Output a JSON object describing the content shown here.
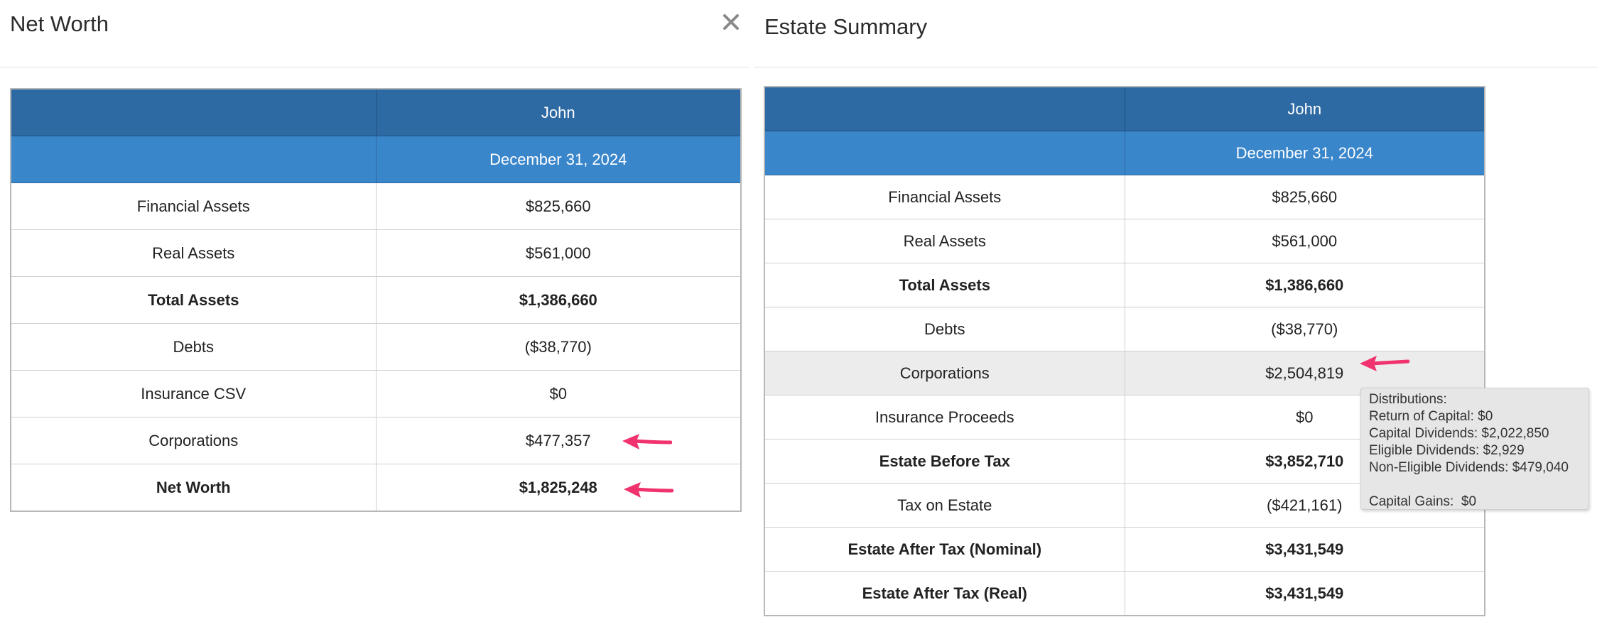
{
  "net_worth": {
    "title": "Net Worth",
    "header": {
      "name": "John",
      "date": "December 31, 2024"
    },
    "rows": [
      {
        "label": "Financial Assets",
        "value": "$825,660",
        "bold": false
      },
      {
        "label": "Real Assets",
        "value": "$561,000",
        "bold": false
      },
      {
        "label": "Total Assets",
        "value": "$1,386,660",
        "bold": true
      },
      {
        "label": "Debts",
        "value": "($38,770)",
        "bold": false
      },
      {
        "label": "Insurance CSV",
        "value": "$0",
        "bold": false
      },
      {
        "label": "Corporations",
        "value": "$477,357",
        "bold": false
      },
      {
        "label": "Net Worth",
        "value": "$1,825,248",
        "bold": true
      }
    ]
  },
  "estate_summary": {
    "title": "Estate Summary",
    "header": {
      "name": "John",
      "date": "December 31, 2024"
    },
    "rows": [
      {
        "label": "Financial Assets",
        "value": "$825,660",
        "bold": false
      },
      {
        "label": "Real Assets",
        "value": "$561,000",
        "bold": false
      },
      {
        "label": "Total Assets",
        "value": "$1,386,660",
        "bold": true
      },
      {
        "label": "Debts",
        "value": "($38,770)",
        "bold": false
      },
      {
        "label": "Corporations",
        "value": "$2,504,819",
        "bold": false
      },
      {
        "label": "Insurance Proceeds",
        "value": "$0",
        "bold": false
      },
      {
        "label": "Estate Before Tax",
        "value": "$3,852,710",
        "bold": true
      },
      {
        "label": "Tax on Estate",
        "value": "($421,161)",
        "bold": false
      },
      {
        "label": "Estate After Tax (Nominal)",
        "value": "$3,431,549",
        "bold": true
      },
      {
        "label": "Estate After Tax (Real)",
        "value": "$3,431,549",
        "bold": true
      }
    ]
  },
  "tooltip": {
    "lines": [
      "Distributions:",
      "Return of Capital: $0",
      "Capital Dividends: $2,022,850",
      "Eligible Dividends: $2,929",
      "Non-Eligible Dividends: $479,040",
      "",
      "Capital Gains:  $0"
    ]
  },
  "icons": {
    "close": "close-icon",
    "annotation": "arrow-left-icon"
  },
  "colors": {
    "header_dark": "#2d6aa4",
    "header_light": "#3a86cb",
    "arrow": "#f0326e",
    "tooltip_bg": "#e6e6e6"
  }
}
